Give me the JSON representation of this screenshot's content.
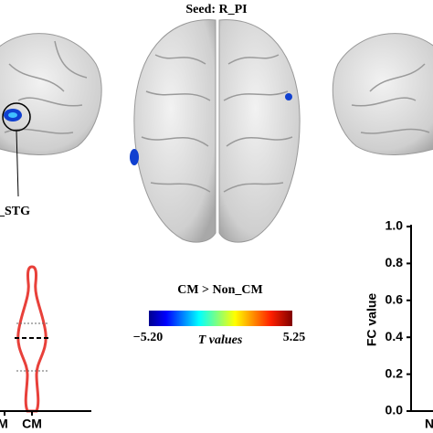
{
  "title": "Seed: R_PI",
  "left_panel": {
    "label": "_STG"
  },
  "colorbar": {
    "title": "CM > Non_CM",
    "min_label": "−5.20",
    "max_label": "5.25",
    "axis_label": "T values"
  },
  "violin": {
    "x_labels": [
      "M",
      "CM"
    ]
  },
  "right_plot": {
    "y_label": "FC value",
    "yticks": [
      "0.0",
      "0.2",
      "0.4",
      "0.6",
      "0.8",
      "1.0"
    ],
    "x_label": "N"
  }
}
